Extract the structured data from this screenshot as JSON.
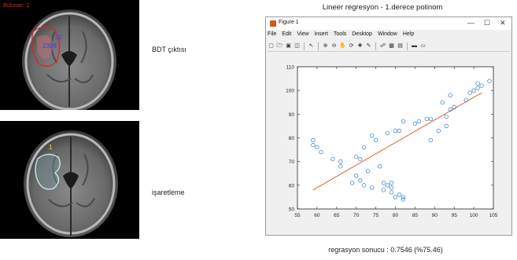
{
  "images": {
    "top_label": "Bulunan :2",
    "marker_a": "22",
    "marker_b": "2306",
    "bottom_marker": "1"
  },
  "captions": {
    "top": "BDT çıktısı",
    "bottom": "işaretleme"
  },
  "figure": {
    "heading": "Lineer regresyon - 1.derece polinom",
    "window_title": "Figure 1",
    "menu": [
      "File",
      "Edit",
      "View",
      "Insert",
      "Tools",
      "Desktop",
      "Window",
      "Help"
    ],
    "result": "regrasyon sonucu : 0.7546 (%75.46)"
  },
  "colors": {
    "scatter": "#2a78c8",
    "fit_line": "#e0622a",
    "overlay_red": "#e02020",
    "overlay_blue": "#3040ff",
    "overlay_yellow": "#f0e020",
    "contour": "#bfe8ec"
  },
  "chart_data": {
    "type": "scatter",
    "xlim": [
      55,
      105
    ],
    "ylim": [
      50,
      110
    ],
    "xticks": [
      55,
      60,
      65,
      70,
      75,
      80,
      85,
      90,
      95,
      100,
      105
    ],
    "yticks": [
      50,
      60,
      70,
      80,
      90,
      100,
      110
    ],
    "grid": false,
    "series": [
      {
        "marker": "circle",
        "x": [
          59,
          59,
          60,
          61,
          64,
          66,
          66,
          69,
          70,
          70,
          71,
          71,
          72,
          72,
          73,
          74,
          74,
          75,
          76,
          77,
          77,
          78,
          78,
          79,
          79,
          79,
          80,
          80,
          81,
          81,
          82,
          82,
          82,
          85,
          86,
          88,
          89,
          89,
          91,
          92,
          93,
          93,
          94,
          94,
          95,
          98,
          99,
          100,
          101,
          101,
          102,
          104
        ],
        "y": [
          79,
          77,
          76,
          74,
          71,
          70,
          68,
          61,
          72,
          64,
          62,
          71,
          60,
          76,
          66,
          59,
          81,
          79,
          68,
          61,
          58,
          60,
          82,
          59,
          57,
          61,
          83,
          55,
          56,
          83,
          54,
          87,
          55,
          86,
          87,
          88,
          88,
          79,
          83,
          95,
          89,
          85,
          92,
          98,
          93,
          96,
          99,
          100,
          101,
          103,
          102,
          104
        ]
      },
      {
        "type": "line",
        "x": [
          59,
          102
        ],
        "y": [
          58,
          99
        ]
      }
    ]
  }
}
